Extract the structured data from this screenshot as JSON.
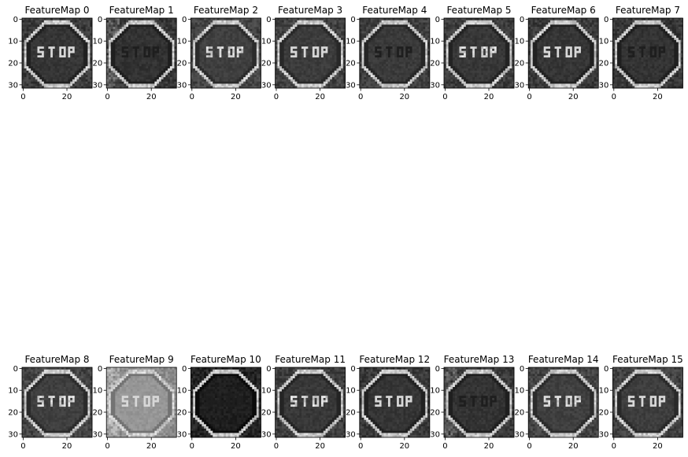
{
  "chart_data": {
    "type": "heatmap",
    "colormap": "gray",
    "grid": false,
    "image_size": [
      32,
      32
    ],
    "x_ticks": [
      0,
      20
    ],
    "y_ticks": [
      0,
      10,
      20,
      30
    ],
    "rows": 2,
    "cols": 8,
    "subplots": [
      {
        "title": "FeatureMap 0"
      },
      {
        "title": "FeatureMap 1"
      },
      {
        "title": "FeatureMap 2"
      },
      {
        "title": "FeatureMap 3"
      },
      {
        "title": "FeatureMap 4"
      },
      {
        "title": "FeatureMap 5"
      },
      {
        "title": "FeatureMap 6"
      },
      {
        "title": "FeatureMap 7"
      },
      {
        "title": "FeatureMap 8"
      },
      {
        "title": "FeatureMap 9"
      },
      {
        "title": "FeatureMap 10"
      },
      {
        "title": "FeatureMap 11"
      },
      {
        "title": "FeatureMap 12"
      },
      {
        "title": "FeatureMap 13"
      },
      {
        "title": "FeatureMap 14"
      },
      {
        "title": "FeatureMap 15"
      }
    ]
  },
  "colors": {
    "axis": "#000000",
    "background": "#ffffff"
  },
  "image_content": "STOP"
}
